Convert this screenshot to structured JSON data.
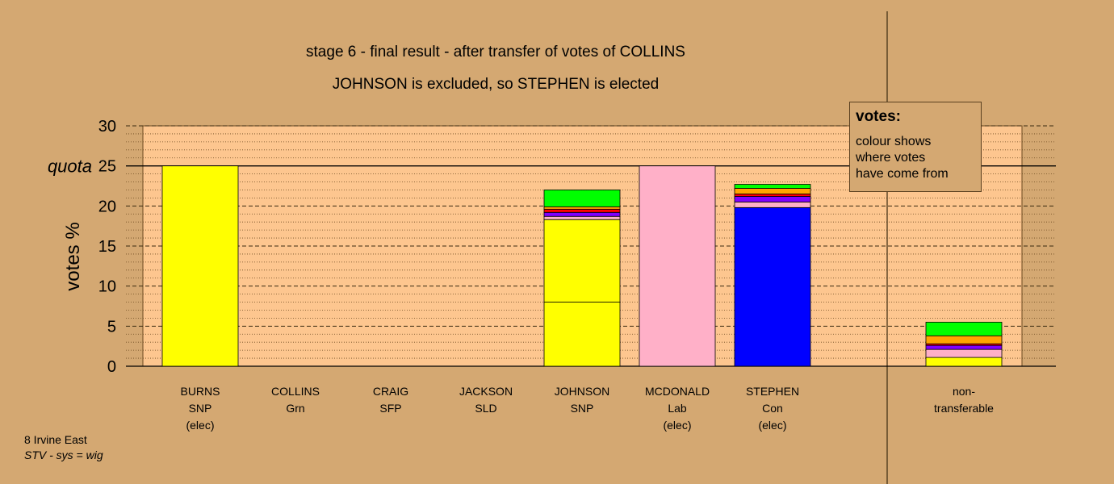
{
  "chart_data": {
    "type": "bar",
    "stacked": true,
    "title": "stage 6 - final result - after transfer of votes of COLLINS",
    "subtitle": "JOHNSON is excluded, so STEPHEN is elected",
    "ylabel": "votes %",
    "ylim": [
      0,
      30
    ],
    "yticks": [
      0,
      5,
      10,
      15,
      20,
      25,
      30
    ],
    "quota": {
      "label": "quota",
      "value": 25
    },
    "grid": true,
    "categories": [
      {
        "name": "BURNS",
        "party": "SNP",
        "status": "(elec)"
      },
      {
        "name": "COLLINS",
        "party": "Grn",
        "status": ""
      },
      {
        "name": "CRAIG",
        "party": "SFP",
        "status": ""
      },
      {
        "name": "JACKSON",
        "party": "SLD",
        "status": ""
      },
      {
        "name": "JOHNSON",
        "party": "SNP",
        "status": ""
      },
      {
        "name": "MCDONALD",
        "party": "Lab",
        "status": "(elec)"
      },
      {
        "name": "STEPHEN",
        "party": "Con",
        "status": "(elec)"
      },
      {
        "name": "non-",
        "party": "transferable",
        "status": ""
      }
    ],
    "segments": [
      [
        {
          "value": 25.0,
          "color": "#ffff00"
        }
      ],
      [],
      [],
      [],
      [
        {
          "value": 8.0,
          "color": "#ffff00"
        },
        {
          "value": 10.3,
          "color": "#ffff00"
        },
        {
          "value": 0.4,
          "color": "#ffb0c8"
        },
        {
          "value": 0.5,
          "color": "#8000ff"
        },
        {
          "value": 0.4,
          "color": "#ff0000"
        },
        {
          "value": 0.3,
          "color": "#ffa500"
        },
        {
          "value": 2.1,
          "color": "#00ff00"
        }
      ],
      [
        {
          "value": 25.0,
          "color": "#ffb0c8"
        }
      ],
      [
        {
          "value": 19.8,
          "color": "#0000ff"
        },
        {
          "value": 0.7,
          "color": "#ffb0c8"
        },
        {
          "value": 0.7,
          "color": "#8000ff"
        },
        {
          "value": 0.3,
          "color": "#ff0000"
        },
        {
          "value": 0.7,
          "color": "#ffa500"
        },
        {
          "value": 0.5,
          "color": "#00ff00"
        }
      ],
      [
        {
          "value": 1.1,
          "color": "#ffff00"
        },
        {
          "value": 1.0,
          "color": "#ffb0c8"
        },
        {
          "value": 0.5,
          "color": "#8000ff"
        },
        {
          "value": 0.2,
          "color": "#ff0000"
        },
        {
          "value": 1.0,
          "color": "#ffa500"
        },
        {
          "value": 1.7,
          "color": "#00ff00"
        }
      ]
    ]
  },
  "legend": {
    "title": "votes:",
    "lines": [
      "colour shows",
      "where votes",
      "have come from"
    ]
  },
  "footer": {
    "line1": "8 Irvine East",
    "line2": "STV - sys = wig"
  },
  "colors": {
    "background": "#d4a872",
    "plot_background": "#fdc68f"
  }
}
